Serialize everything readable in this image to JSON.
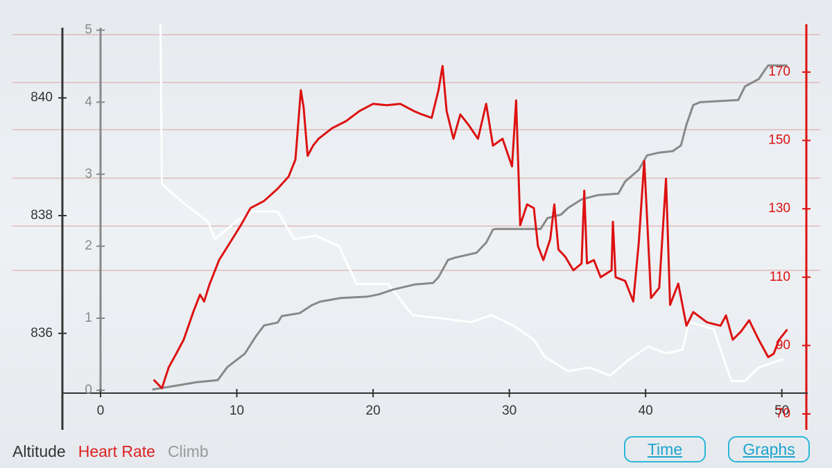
{
  "chart_data": {
    "type": "line",
    "xlim": [
      -2.8,
      51.9
    ],
    "xticks": [
      0,
      10,
      20,
      30,
      40,
      50
    ],
    "ylim": [
      834.36,
      841.31
    ],
    "yticks": [
      836,
      838,
      840
    ],
    "y2lim": [
      65.33,
      185.0
    ],
    "y2ticks": [
      70,
      90,
      110,
      130,
      150,
      170
    ],
    "y3lim": [
      -0.55,
      5.13
    ],
    "y3ticks": [
      0,
      1,
      2,
      3,
      4,
      5
    ],
    "series": [
      {
        "name": "Altitude",
        "color": "#ffffff",
        "legend_color": "#333333",
        "axis": "y",
        "x": [
          4.4,
          4.5,
          5.9,
          7.9,
          8.4,
          9.9,
          11.2,
          13.0,
          14.2,
          15.8,
          17.5,
          18.8,
          21.1,
          22.9,
          25.2,
          27.2,
          28.7,
          30.3,
          31.8,
          32.6,
          34.3,
          35.9,
          37.4,
          38.7,
          40.2,
          41.5,
          42.7,
          43.2,
          45.0,
          46.3,
          47.3,
          48.3,
          50.1
        ],
        "values": [
          841.25,
          838.54,
          838.25,
          837.89,
          837.6,
          837.89,
          838.07,
          838.07,
          837.6,
          837.66,
          837.48,
          836.84,
          836.84,
          836.31,
          836.25,
          836.19,
          836.31,
          836.13,
          835.89,
          835.6,
          835.36,
          835.42,
          835.28,
          835.54,
          835.78,
          835.66,
          835.72,
          836.19,
          836.07,
          835.19,
          835.19,
          835.42,
          835.56
        ]
      },
      {
        "name": "Heart Rate",
        "color": "#dd1111",
        "legend_color": "#dd2222",
        "axis": "y2",
        "x": [
          3.9,
          4.5,
          5.0,
          5.5,
          6.1,
          6.8,
          7.3,
          7.6,
          8.0,
          8.7,
          9.5,
          10.3,
          11.0,
          12.0,
          13.0,
          13.8,
          14.3,
          14.7,
          14.9,
          15.2,
          15.6,
          16.0,
          17.0,
          18.0,
          19.0,
          20.0,
          21.0,
          22.0,
          23.0,
          23.6,
          24.3,
          24.8,
          25.1,
          25.4,
          25.9,
          26.4,
          27.0,
          27.7,
          28.3,
          28.8,
          29.5,
          30.2,
          30.5,
          30.8,
          31.3,
          31.8,
          32.1,
          32.5,
          33.0,
          33.3,
          33.6,
          34.1,
          34.7,
          35.3,
          35.5,
          35.7,
          36.2,
          36.7,
          37.5,
          37.6,
          37.8,
          38.5,
          39.1,
          39.5,
          39.9,
          40.4,
          41.0,
          41.5,
          41.8,
          42.4,
          43.0,
          43.5,
          44.5,
          45.5,
          45.9,
          46.4,
          47.0,
          47.6,
          48.3,
          49.0,
          49.4,
          49.8,
          50.4
        ],
        "values": [
          80.0,
          77.5,
          83.6,
          87.2,
          91.7,
          99.8,
          104.9,
          102.9,
          107.9,
          115.0,
          120.1,
          125.2,
          130.2,
          132.3,
          135.9,
          139.4,
          144.4,
          164.7,
          159.7,
          145.5,
          148.5,
          150.5,
          153.6,
          155.6,
          158.6,
          160.7,
          160.3,
          160.7,
          158.6,
          157.6,
          156.6,
          164.7,
          171.8,
          158.6,
          150.5,
          157.6,
          154.6,
          150.5,
          160.7,
          148.5,
          150.5,
          142.4,
          161.7,
          125.2,
          131.3,
          130.2,
          119.1,
          115.0,
          121.1,
          131.3,
          118.1,
          116.0,
          112.0,
          114.0,
          135.3,
          114.0,
          115.0,
          110.0,
          112.0,
          126.2,
          110.0,
          108.9,
          102.9,
          120.1,
          144.0,
          103.9,
          106.9,
          138.8,
          101.9,
          108.1,
          95.8,
          99.8,
          96.8,
          95.8,
          98.8,
          91.7,
          94.1,
          97.4,
          91.7,
          86.6,
          87.6,
          91.7,
          94.7
        ]
      },
      {
        "name": "Climb",
        "color": "#888888",
        "legend_color": "#999999",
        "axis": "y3",
        "x": [
          3.8,
          5.1,
          7.0,
          8.6,
          9.3,
          10.6,
          11.4,
          12.0,
          13.0,
          13.3,
          14.6,
          15.5,
          16.1,
          17.6,
          19.6,
          20.4,
          21.5,
          23.1,
          24.4,
          24.8,
          25.5,
          26.0,
          27.6,
          28.3,
          28.8,
          29.0,
          32.3,
          32.8,
          33.8,
          34.3,
          35.3,
          36.5,
          38.0,
          38.5,
          39.5,
          40.1,
          41.0,
          42.0,
          42.6,
          43.0,
          43.5,
          44.0,
          46.8,
          47.3,
          48.3,
          48.8,
          49.0,
          50.4
        ],
        "values": [
          0.01,
          0.05,
          0.11,
          0.14,
          0.32,
          0.51,
          0.75,
          0.9,
          0.94,
          1.03,
          1.07,
          1.18,
          1.23,
          1.28,
          1.3,
          1.33,
          1.4,
          1.47,
          1.49,
          1.57,
          1.81,
          1.84,
          1.91,
          2.05,
          2.23,
          2.24,
          2.24,
          2.39,
          2.44,
          2.53,
          2.65,
          2.71,
          2.73,
          2.9,
          3.06,
          3.26,
          3.3,
          3.32,
          3.4,
          3.69,
          3.96,
          4.0,
          4.03,
          4.22,
          4.32,
          4.46,
          4.51,
          4.51
        ]
      }
    ]
  },
  "buttons": [
    "Time",
    "Graphs"
  ]
}
